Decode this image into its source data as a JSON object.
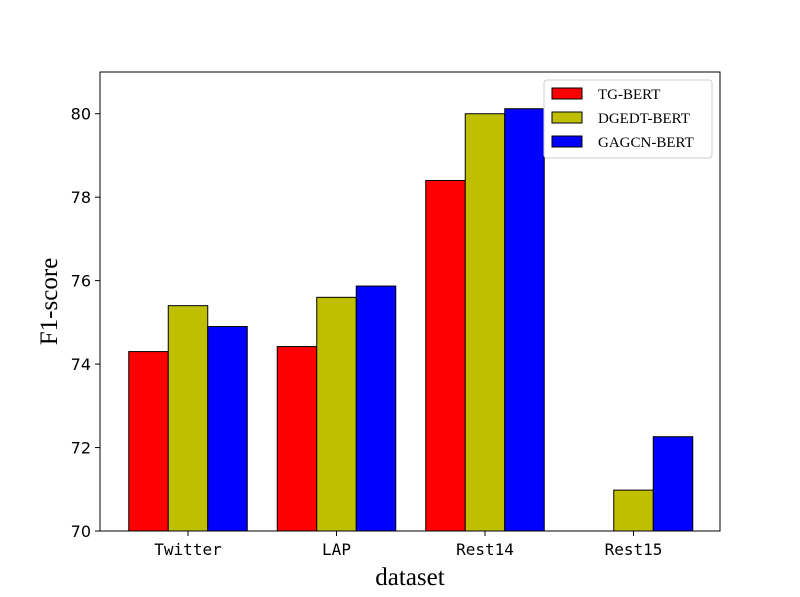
{
  "chart_data": {
    "type": "bar",
    "title": "",
    "xlabel": "dataset",
    "ylabel": "F1-score",
    "categories": [
      "Twitter",
      "LAP",
      "Rest14",
      "Rest15"
    ],
    "series": [
      {
        "name": "TG-BERT",
        "values": [
          74.3,
          74.42,
          78.4,
          null
        ],
        "color": "#ff0000"
      },
      {
        "name": "DGEDT-BERT",
        "values": [
          75.4,
          75.6,
          80.0,
          70.98
        ],
        "color": "#bfbf00"
      },
      {
        "name": "GAGCN-BERT",
        "values": [
          74.9,
          75.87,
          80.12,
          72.26
        ],
        "color": "#0000ff"
      }
    ],
    "ylim": [
      70,
      81
    ],
    "yticks": [
      70,
      72,
      74,
      76,
      78,
      80
    ],
    "legend": "top-right",
    "grid": false
  }
}
